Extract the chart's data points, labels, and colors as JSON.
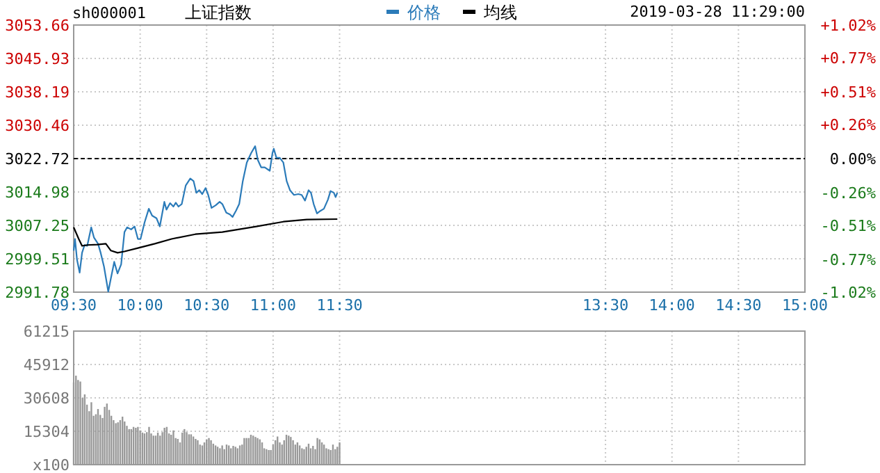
{
  "chart_data": [
    {
      "type": "line",
      "title": "上证指数",
      "subtitle": "sh000001",
      "annotations": [
        "2019-03-28 11:29:00"
      ],
      "legend": "top",
      "grid": true,
      "xlim": [
        9.5,
        15
      ],
      "xticks": [
        {
          "value": 9.5,
          "label": "09:30"
        },
        {
          "value": 10,
          "label": "10:00"
        },
        {
          "value": 10.5,
          "label": "10:30"
        },
        {
          "value": 11,
          "label": "11:00"
        },
        {
          "value": 11.5,
          "label": "11:30"
        },
        {
          "value": 13.5,
          "label": "13:30"
        },
        {
          "value": 14,
          "label": "14:00"
        },
        {
          "value": 14.5,
          "label": "14:30"
        },
        {
          "value": 15,
          "label": "15:00"
        }
      ],
      "ylim": [
        2991.78,
        3053.66
      ],
      "yticks": [
        2991.78,
        2999.51,
        3007.25,
        3014.98,
        3022.72,
        3030.46,
        3038.19,
        3045.93,
        3053.66
      ],
      "y2lim": [
        -1.02,
        1.02
      ],
      "y2ticks": [
        {
          "value": -1.02,
          "label": "-1.02%"
        },
        {
          "value": -0.77,
          "label": "-0.77%"
        },
        {
          "value": -0.51,
          "label": "-0.51%"
        },
        {
          "value": -0.26,
          "label": "-0.26%"
        },
        {
          "value": 0,
          "label": "0.00%"
        },
        {
          "value": 0.26,
          "label": "+0.26%"
        },
        {
          "value": 0.51,
          "label": "+0.51%"
        },
        {
          "value": 0.77,
          "label": "+0.77%"
        },
        {
          "value": 1.02,
          "label": "+1.02%"
        }
      ],
      "ref_lines": [
        {
          "axis": "y",
          "value": 3022.72,
          "color": "#000000",
          "line_style": "dashed"
        }
      ],
      "series": [
        {
          "name": "价格",
          "color": "#2b7bb9",
          "x": [
            9.5,
            9.51,
            9.525,
            9.545,
            9.563,
            9.582,
            9.602,
            9.632,
            9.653,
            9.683,
            9.703,
            9.728,
            9.76,
            9.78,
            9.805,
            9.83,
            9.857,
            9.882,
            9.902,
            9.932,
            9.958,
            9.983,
            10.003,
            10.033,
            10.065,
            10.09,
            10.123,
            10.148,
            10.182,
            10.198,
            10.225,
            10.25,
            10.268,
            10.288,
            10.313,
            10.343,
            10.377,
            10.402,
            10.423,
            10.445,
            10.467,
            10.492,
            10.512,
            10.537,
            10.568,
            10.598,
            10.618,
            10.648,
            10.675,
            10.695,
            10.72,
            10.745,
            10.772,
            10.802,
            10.835,
            10.865,
            10.885,
            10.91,
            10.937,
            10.975,
            10.995,
            11.005,
            11.025,
            11.05,
            11.077,
            11.102,
            11.127,
            11.157,
            11.19,
            11.215,
            11.24,
            11.267,
            11.285,
            11.305,
            11.33,
            11.355,
            11.382,
            11.412,
            11.432,
            11.457,
            11.47,
            11.483
          ],
          "values": [
            3001.4,
            3004.1,
            2999.3,
            2996.3,
            3000.9,
            3002.7,
            3002.5,
            3006.8,
            3004.4,
            3003.0,
            3000.9,
            2997.7,
            2991.9,
            2995.0,
            2998.8,
            2996.1,
            2998.2,
            3005.7,
            3006.8,
            3006.3,
            3007.0,
            3004.1,
            3004.1,
            3007.9,
            3011.1,
            3009.5,
            3008.9,
            3007.0,
            3012.7,
            3010.9,
            3012.4,
            3011.6,
            3012.5,
            3011.6,
            3012.2,
            3016.5,
            3018.1,
            3017.5,
            3014.8,
            3015.4,
            3014.5,
            3015.9,
            3014.3,
            3011.3,
            3011.9,
            3012.7,
            3012.2,
            3010.2,
            3009.8,
            3009.2,
            3010.6,
            3012.2,
            3017.5,
            3021.8,
            3024.0,
            3025.6,
            3022.4,
            3020.7,
            3020.7,
            3019.9,
            3024.0,
            3025.0,
            3022.9,
            3022.9,
            3021.8,
            3017.5,
            3015.4,
            3014.3,
            3014.5,
            3014.3,
            3013.0,
            3015.4,
            3014.8,
            3012.2,
            3010.0,
            3010.6,
            3011.1,
            3013.2,
            3015.2,
            3014.8,
            3013.8,
            3014.8
          ]
        },
        {
          "name": "均线",
          "color": "#000000",
          "x": [
            9.5,
            9.538,
            9.563,
            9.602,
            9.678,
            9.742,
            9.78,
            9.83,
            9.882,
            9.983,
            10.11,
            10.237,
            10.415,
            10.618,
            10.873,
            11.077,
            11.253,
            11.483
          ],
          "values": [
            3006.8,
            3004.1,
            3002.5,
            3002.7,
            3002.8,
            3003.0,
            3001.4,
            3000.9,
            3001.2,
            3002.0,
            3003.0,
            3004.1,
            3005.2,
            3005.7,
            3007.0,
            3008.1,
            3008.6,
            3008.7
          ]
        }
      ]
    },
    {
      "type": "bar",
      "color": "#999999",
      "grid": true,
      "tick_labels": "y",
      "xlim": [
        9.5,
        15
      ],
      "xticks": [
        9.5,
        10,
        10.5,
        11,
        11.5,
        13.5,
        14,
        14.5,
        15
      ],
      "ylim": [
        0,
        61215
      ],
      "yticks": [
        {
          "value": 0,
          "label": "x100"
        },
        15304,
        30608,
        45912,
        61215
      ],
      "x": [
        9.5,
        9.517,
        9.533,
        9.55,
        9.567,
        9.583,
        9.6,
        9.617,
        9.633,
        9.65,
        9.667,
        9.683,
        9.7,
        9.717,
        9.733,
        9.75,
        9.767,
        9.783,
        9.8,
        9.817,
        9.833,
        9.85,
        9.867,
        9.883,
        9.9,
        9.917,
        9.933,
        9.95,
        9.967,
        9.983,
        10,
        10.017,
        10.033,
        10.05,
        10.067,
        10.083,
        10.1,
        10.117,
        10.133,
        10.15,
        10.167,
        10.183,
        10.2,
        10.217,
        10.233,
        10.25,
        10.267,
        10.283,
        10.3,
        10.317,
        10.333,
        10.35,
        10.367,
        10.383,
        10.4,
        10.417,
        10.433,
        10.45,
        10.467,
        10.483,
        10.5,
        10.517,
        10.533,
        10.55,
        10.567,
        10.583,
        10.6,
        10.617,
        10.633,
        10.65,
        10.667,
        10.683,
        10.7,
        10.717,
        10.733,
        10.75,
        10.767,
        10.783,
        10.8,
        10.817,
        10.833,
        10.85,
        10.867,
        10.883,
        10.9,
        10.917,
        10.933,
        10.95,
        10.967,
        10.983,
        11,
        11.017,
        11.033,
        11.05,
        11.067,
        11.083,
        11.1,
        11.117,
        11.133,
        11.15,
        11.167,
        11.183,
        11.2,
        11.217,
        11.233,
        11.25,
        11.267,
        11.283,
        11.3,
        11.317,
        11.333,
        11.35,
        11.367,
        11.383,
        11.4,
        11.417,
        11.433,
        11.45,
        11.467,
        11.483,
        11.5
      ],
      "values": [
        37700,
        40800,
        38800,
        38100,
        30600,
        32200,
        27500,
        24500,
        28600,
        22400,
        23100,
        25500,
        22800,
        21400,
        26500,
        28000,
        25100,
        22400,
        20400,
        19000,
        19400,
        20400,
        22000,
        19800,
        17800,
        16300,
        16300,
        17300,
        16900,
        17300,
        15700,
        14700,
        14300,
        14900,
        17300,
        14300,
        13300,
        13300,
        14700,
        13300,
        14900,
        16900,
        17300,
        14300,
        13700,
        15700,
        12200,
        11800,
        10200,
        14700,
        16300,
        14900,
        13900,
        13900,
        12900,
        11800,
        11200,
        9200,
        8800,
        10200,
        11600,
        12200,
        11200,
        9600,
        8800,
        8200,
        7500,
        8800,
        7100,
        9200,
        8800,
        7500,
        8600,
        8200,
        7500,
        8800,
        9200,
        12200,
        12200,
        12200,
        13700,
        13300,
        12700,
        12200,
        11600,
        10200,
        7500,
        7100,
        6700,
        6700,
        9200,
        11200,
        12900,
        10200,
        9200,
        11200,
        13700,
        13300,
        12700,
        11200,
        9200,
        10200,
        8800,
        7500,
        7100,
        8200,
        9600,
        7500,
        8600,
        7100,
        12200,
        11600,
        10200,
        9200,
        7500,
        7100,
        6700,
        9200,
        7100,
        8200,
        10200
      ]
    }
  ]
}
